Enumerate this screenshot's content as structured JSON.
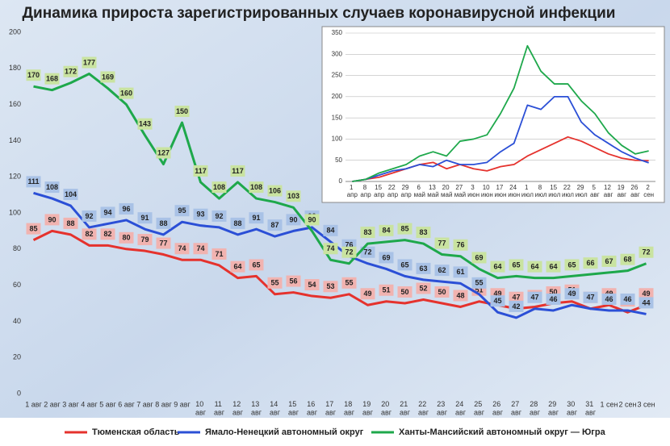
{
  "chart_data": [
    {
      "type": "line",
      "title": "Динамика прироста зарегистрированных случаев коронавирусной инфекции",
      "categories": [
        "1 авг",
        "2 авг",
        "3 авг",
        "4 авг",
        "5 авг",
        "6 авг",
        "7 авг",
        "8 авг",
        "9 авг",
        "10 авг",
        "11 авг",
        "12 авг",
        "13 авг",
        "14 авг",
        "15 авг",
        "16 авг",
        "17 авг",
        "18 авг",
        "19 авг",
        "20 авг",
        "21 авг",
        "22 авг",
        "23 авг",
        "24 авг",
        "25 авг",
        "26 авг",
        "27 авг",
        "28 авг",
        "29 авг",
        "30 авг",
        "31 авг",
        "1 сен",
        "2 сен",
        "3 сен"
      ],
      "series": [
        {
          "name": "Тюменская область",
          "color": "#e5322d",
          "label_bg": "#f1b3b0",
          "values": [
            85,
            90,
            88,
            82,
            82,
            80,
            79,
            77,
            74,
            74,
            71,
            64,
            65,
            55,
            56,
            54,
            53,
            55,
            49,
            51,
            50,
            52,
            50,
            48,
            51,
            49,
            47,
            48,
            50,
            51,
            47,
            49,
            45,
            49
          ]
        },
        {
          "name": "Ямало-Ненецкий автономный округ",
          "color": "#2b4fd6",
          "label_bg": "#a9c2e6",
          "values": [
            111,
            108,
            104,
            92,
            94,
            96,
            91,
            88,
            95,
            93,
            92,
            88,
            91,
            87,
            90,
            92,
            84,
            76,
            72,
            69,
            65,
            63,
            62,
            61,
            55,
            45,
            42,
            47,
            46,
            49,
            47,
            46,
            46,
            44
          ]
        },
        {
          "name": "Ханты-Мансийский автономный округ — Югра",
          "color": "#1ea84b",
          "label_bg": "#c9e3a0",
          "values": [
            170,
            168,
            172,
            177,
            169,
            160,
            143,
            127,
            150,
            117,
            108,
            117,
            108,
            106,
            103,
            90,
            74,
            72,
            83,
            84,
            85,
            83,
            77,
            76,
            69,
            64,
            65,
            64,
            64,
            65,
            66,
            67,
            68,
            72
          ]
        }
      ],
      "ylim": [
        0,
        200
      ],
      "yticks": [
        0,
        20,
        40,
        60,
        80,
        100,
        120,
        140,
        160,
        180,
        200
      ],
      "grid": false,
      "legend": "bottom"
    },
    {
      "type": "line",
      "categories": [
        "1 апр",
        "8 апр",
        "15 апр",
        "22 апр",
        "29 апр",
        "6 май",
        "13 май",
        "20 май",
        "27 май",
        "3 июн",
        "10 июн",
        "17 июн",
        "24 июн",
        "1 июл",
        "8 июл",
        "15 июл",
        "22 июл",
        "29 июл",
        "5 авг",
        "12 авг",
        "19 авг",
        "26 авг",
        "2 сен"
      ],
      "series": [
        {
          "color": "#e5322d",
          "values": [
            0,
            5,
            10,
            20,
            30,
            40,
            45,
            30,
            40,
            30,
            25,
            35,
            40,
            60,
            75,
            90,
            105,
            95,
            80,
            65,
            55,
            50,
            49
          ]
        },
        {
          "color": "#2b4fd6",
          "values": [
            0,
            5,
            15,
            25,
            30,
            40,
            35,
            50,
            40,
            40,
            45,
            70,
            90,
            180,
            170,
            200,
            200,
            140,
            110,
            90,
            70,
            55,
            44
          ]
        },
        {
          "color": "#1ea84b",
          "values": [
            0,
            5,
            20,
            30,
            40,
            60,
            70,
            60,
            95,
            100,
            110,
            160,
            220,
            320,
            260,
            230,
            230,
            190,
            160,
            115,
            85,
            65,
            72
          ]
        }
      ],
      "ylim": [
        0,
        350
      ],
      "yticks": [
        0,
        50,
        100,
        150,
        200,
        250,
        300,
        350
      ],
      "grid": true
    }
  ]
}
